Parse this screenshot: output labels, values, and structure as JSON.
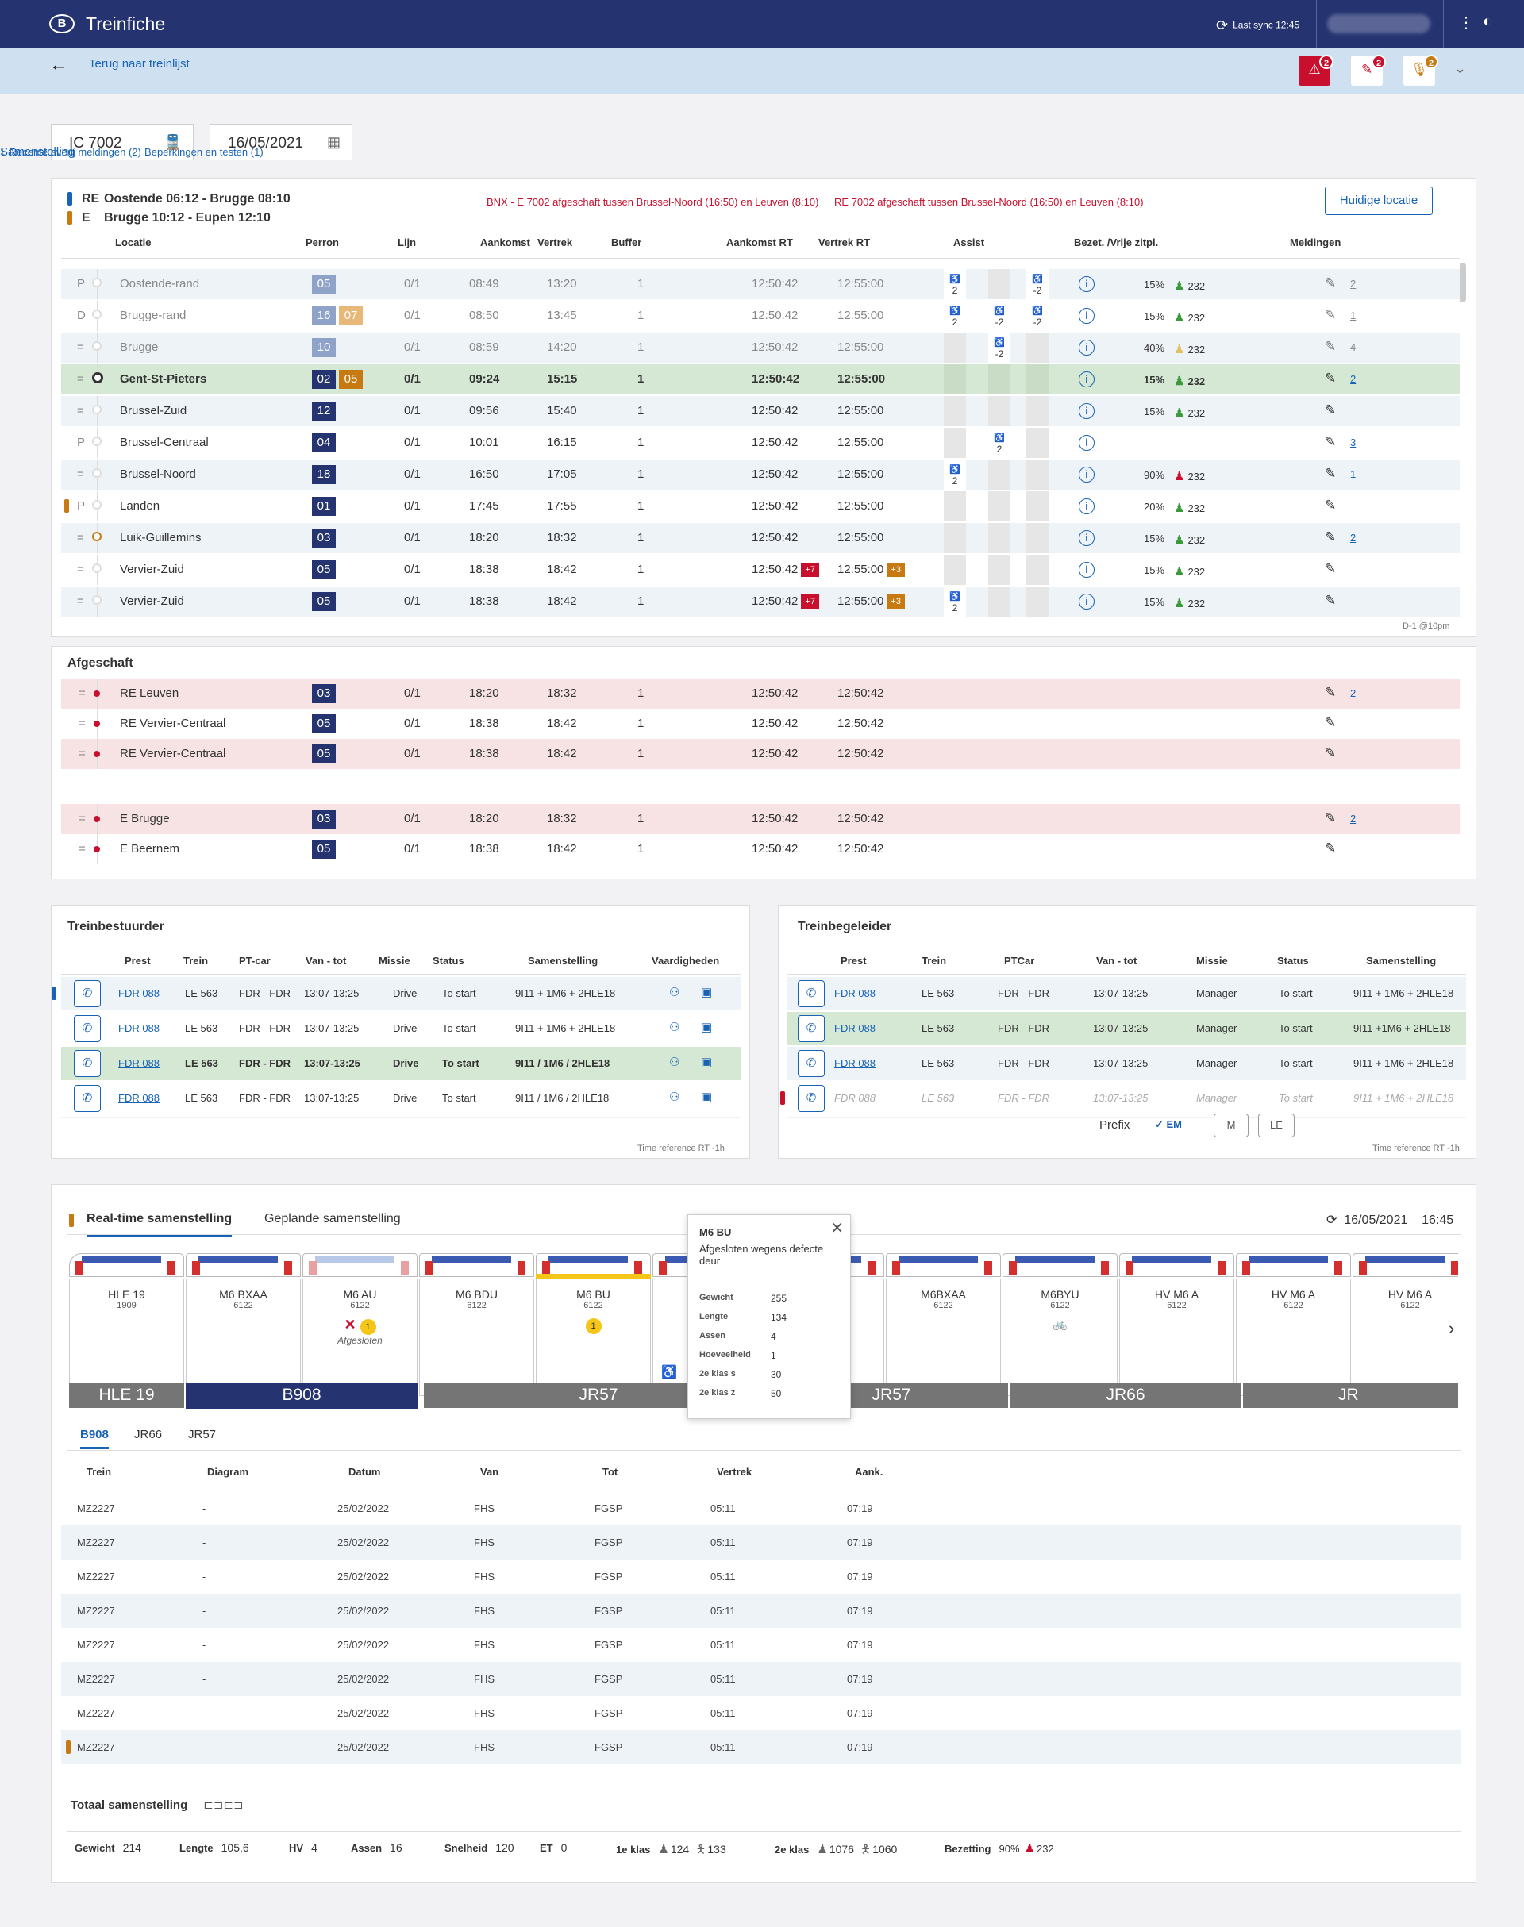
{
  "app": {
    "logo": "B",
    "title": "Treinfiche",
    "sync": "Last sync 12:45"
  },
  "subbar": {
    "back": "Terug naar treinlijst",
    "badges": [
      {
        "count": "2",
        "color": "#c8102e",
        "icon": "train-alert-icon"
      },
      {
        "count": "2",
        "color": "#ffffff",
        "icon": "restriction-icon"
      },
      {
        "count": "2",
        "color": "#ffffff",
        "icon": "microphone-icon"
      }
    ]
  },
  "search": {
    "train": "IC 7002",
    "date": "16/05/2021",
    "tabs": [
      "Samenstelling",
      "Recente averij meldingen (2)",
      "Beperkingen en testen (1)"
    ]
  },
  "route": {
    "lines": [
      {
        "code": "RE",
        "text": "Oostende 06:12 -  Brugge 08:10",
        "color": "#1863b6"
      },
      {
        "code": "E",
        "text": "Brugge 10:12 -  Eupen 12:10",
        "color": "#c77a12"
      }
    ],
    "alerts": [
      "BNX - E 7002 afgeschaft tussen Brussel-Noord (16:50) en Leuven (8:10)",
      "RE 7002 afgeschaft tussen Brussel-Noord (16:50) en Leuven (8:10)"
    ],
    "location_btn": "Huidige locatie",
    "headers": [
      "Locatie",
      "Perron",
      "Lijn",
      "Aankomst",
      "Vertrek",
      "Buffer",
      "Aankomst RT",
      "Vertrek RT",
      "Assist",
      "Bezet. /Vrije zitpl.",
      "Meldingen"
    ],
    "rows": [
      {
        "flag": "P",
        "loc": "Oostende-rand",
        "perron": "05",
        "perron2": "",
        "lijn": "0/1",
        "aank": "08:49",
        "vert": "13:20",
        "buf": "1",
        "aankrt": "12:50:42",
        "vertrt": "12:55:00",
        "tag1": "",
        "tag2": "",
        "assist": [
          "2",
          "",
          "-2"
        ],
        "bezet": "15%",
        "zit": "232",
        "meld": "2",
        "style": "dim"
      },
      {
        "flag": "D",
        "loc": "Brugge-rand",
        "perron": "16",
        "perron2": "07",
        "lijn": "0/1",
        "aank": "08:50",
        "vert": "13:45",
        "buf": "1",
        "aankrt": "12:50:42",
        "vertrt": "12:55:00",
        "tag1": "",
        "tag2": "",
        "assist": [
          "2",
          "-2",
          "-2"
        ],
        "bezet": "15%",
        "zit": "232",
        "meld": "1",
        "style": "dim"
      },
      {
        "flag": "=",
        "loc": "Brugge",
        "perron": "10",
        "perron2": "",
        "lijn": "0/1",
        "aank": "08:59",
        "vert": "14:20",
        "buf": "1",
        "aankrt": "12:50:42",
        "vertrt": "12:55:00",
        "tag1": "",
        "tag2": "",
        "assist": [
          "",
          "-2",
          ""
        ],
        "bezet": "40%",
        "zit": "232",
        "meld": "4",
        "style": "dim"
      },
      {
        "flag": "=",
        "loc": "Gent-St-Pieters",
        "perron": "02",
        "perron2": "05",
        "lijn": "0/1",
        "aank": "09:24",
        "vert": "15:15",
        "buf": "1",
        "aankrt": "12:50:42",
        "vertrt": "12:55:00",
        "tag1": "",
        "tag2": "",
        "assist": [
          "",
          "",
          ""
        ],
        "bezet": "15%",
        "zit": "232",
        "meld": "2",
        "style": "current"
      },
      {
        "flag": "=",
        "loc": "Brussel-Zuid",
        "perron": "12",
        "perron2": "",
        "lijn": "0/1",
        "aank": "09:56",
        "vert": "15:40",
        "buf": "1",
        "aankrt": "12:50:42",
        "vertrt": "12:55:00",
        "tag1": "",
        "tag2": "",
        "assist": [
          "",
          "",
          ""
        ],
        "bezet": "15%",
        "zit": "232",
        "meld": "",
        "style": ""
      },
      {
        "flag": "P",
        "loc": "Brussel-Centraal",
        "perron": "04",
        "perron2": "",
        "lijn": "0/1",
        "aank": "10:01",
        "vert": "16:15",
        "buf": "1",
        "aankrt": "12:50:42",
        "vertrt": "12:55:00",
        "tag1": "",
        "tag2": "",
        "assist": [
          "",
          "2",
          ""
        ],
        "bezet": "",
        "zit": "",
        "meld": "3",
        "style": ""
      },
      {
        "flag": "=",
        "loc": "Brussel-Noord",
        "perron": "18",
        "perron2": "",
        "lijn": "0/1",
        "aank": "16:50",
        "vert": "17:05",
        "buf": "1",
        "aankrt": "12:50:42",
        "vertrt": "12:55:00",
        "tag1": "",
        "tag2": "",
        "assist": [
          "2",
          "",
          ""
        ],
        "bezet": "90%",
        "zit": "232",
        "meld": "1",
        "style": ""
      },
      {
        "flag": "P",
        "loc": "Landen",
        "perron": "01",
        "perron2": "",
        "lijn": "0/1",
        "aank": "17:45",
        "vert": "17:55",
        "buf": "1",
        "aankrt": "12:50:42",
        "vertrt": "12:55:00",
        "tag1": "",
        "tag2": "",
        "assist": [
          "",
          "",
          ""
        ],
        "bezet": "20%",
        "zit": "232",
        "meld": "",
        "style": ""
      },
      {
        "flag": "=",
        "loc": "Luik-Guillemins",
        "perron": "03",
        "perron2": "",
        "lijn": "0/1",
        "aank": "18:20",
        "vert": "18:32",
        "buf": "1",
        "aankrt": "12:50:42",
        "vertrt": "12:55:00",
        "tag1": "",
        "tag2": "",
        "assist": [
          "",
          "",
          ""
        ],
        "bezet": "15%",
        "zit": "232",
        "meld": "2",
        "style": ""
      },
      {
        "flag": "=",
        "loc": "Vervier-Zuid",
        "perron": "05",
        "perron2": "",
        "lijn": "0/1",
        "aank": "18:38",
        "vert": "18:42",
        "buf": "1",
        "aankrt": "12:50:42",
        "vertrt": "12:55:00",
        "tag1": "+7",
        "tag2": "+3",
        "assist": [
          "",
          "",
          ""
        ],
        "bezet": "15%",
        "zit": "232",
        "meld": "",
        "style": ""
      },
      {
        "flag": "=",
        "loc": "Vervier-Zuid",
        "perron": "05",
        "perron2": "",
        "lijn": "0/1",
        "aank": "18:38",
        "vert": "18:42",
        "buf": "1",
        "aankrt": "12:50:42",
        "vertrt": "12:55:00",
        "tag1": "+7",
        "tag2": "+3",
        "assist": [
          "2",
          "",
          ""
        ],
        "bezet": "15%",
        "zit": "232",
        "meld": "",
        "style": ""
      }
    ],
    "footnote": "D-1 @10pm"
  },
  "cancelled": {
    "title": "Afgeschaft",
    "rows": [
      {
        "loc": "RE Leuven",
        "perron": "03",
        "lijn": "0/1",
        "aank": "18:20",
        "vert": "18:32",
        "buf": "1",
        "aankrt": "12:50:42",
        "vertrt": "12:50:42",
        "meld": "2",
        "pink": true
      },
      {
        "loc": "RE Vervier-Centraal",
        "perron": "05",
        "lijn": "0/1",
        "aank": "18:38",
        "vert": "18:42",
        "buf": "1",
        "aankrt": "12:50:42",
        "vertrt": "12:50:42",
        "meld": "",
        "pink": false
      },
      {
        "loc": "RE Vervier-Centraal",
        "perron": "05",
        "lijn": "0/1",
        "aank": "18:38",
        "vert": "18:42",
        "buf": "1",
        "aankrt": "12:50:42",
        "vertrt": "12:50:42",
        "meld": "",
        "pink": true
      },
      {
        "loc": "E Brugge",
        "perron": "03",
        "lijn": "0/1",
        "aank": "18:20",
        "vert": "18:32",
        "buf": "1",
        "aankrt": "12:50:42",
        "vertrt": "12:50:42",
        "meld": "2",
        "pink": true
      },
      {
        "loc": "E Beernem",
        "perron": "05",
        "lijn": "0/1",
        "aank": "18:38",
        "vert": "18:42",
        "buf": "1",
        "aankrt": "12:50:42",
        "vertrt": "12:50:42",
        "meld": "",
        "pink": false
      }
    ]
  },
  "driver": {
    "title": "Treinbestuurder",
    "headers": [
      "Prest",
      "Trein",
      "PT-car",
      "Van - tot",
      "Missie",
      "Status",
      "Samenstelling",
      "Vaardigheden"
    ],
    "rows": [
      {
        "prest": "FDR 088",
        "trein": "LE 563",
        "ptcar": "FDR - FDR",
        "vantot": "13:07-13:25",
        "missie": "Drive",
        "status": "To start",
        "sam": "9I11 + 1M6 + 2HLE18"
      },
      {
        "prest": "FDR 088",
        "trein": "LE 563",
        "ptcar": "FDR - FDR",
        "vantot": "13:07-13:25",
        "missie": "Drive",
        "status": "To start",
        "sam": "9I11 + 1M6 + 2HLE18"
      },
      {
        "prest": "FDR 088",
        "trein": "LE 563",
        "ptcar": "FDR - FDR",
        "vantot": "13:07-13:25",
        "missie": "Drive",
        "status": "To start",
        "sam": "9I11 / 1M6 / 2HLE18"
      },
      {
        "prest": "FDR 088",
        "trein": "LE 563",
        "ptcar": "FDR - FDR",
        "vantot": "13:07-13:25",
        "missie": "Drive",
        "status": "To start",
        "sam": "9I11 / 1M6 / 2HLE18"
      }
    ],
    "footnote": "Time reference RT -1h"
  },
  "conductor": {
    "title": "Treinbegeleider",
    "headers": [
      "Prest",
      "Trein",
      "PTCar",
      "Van - tot",
      "Missie",
      "Status",
      "Samenstelling"
    ],
    "rows": [
      {
        "prest": "FDR 088",
        "trein": "LE 563",
        "ptcar": "FDR - FDR",
        "vantot": "13:07-13:25",
        "missie": "Manager",
        "status": "To start",
        "sam": "9I11 + 1M6 + 2HLE18"
      },
      {
        "prest": "FDR 088",
        "trein": "LE 563",
        "ptcar": "FDR - FDR",
        "vantot": "13:07-13:25",
        "missie": "Manager",
        "status": "To start",
        "sam": "9I11 +1M6 + 2HLE18"
      },
      {
        "prest": "FDR 088",
        "trein": "LE 563",
        "ptcar": "FDR - FDR",
        "vantot": "13:07-13:25",
        "missie": "Manager",
        "status": "To start",
        "sam": "9I11 + 1M6 + 2HLE18"
      },
      {
        "prest": "FDR 088",
        "trein": "LE 563",
        "ptcar": "FDR - FDR",
        "vantot": "13:07-13:25",
        "missie": "Manager",
        "status": "To start",
        "sam": "9I11 + 1M6 + 2HLE18"
      }
    ],
    "prefix": "Prefix",
    "em": "EM",
    "m": "M",
    "le": "LE",
    "footnote": "Time reference RT -1h"
  },
  "composition": {
    "tabs": [
      "Real-time samenstelling",
      "Geplande samenstelling"
    ],
    "date": "16/05/2021",
    "time": "16:45",
    "wagons": [
      {
        "name": "HLE 19",
        "num": "1909",
        "status": "",
        "top": "#d32f2f"
      },
      {
        "name": "M6 BXAA",
        "num": "6122",
        "status": "",
        "top": ""
      },
      {
        "name": "M6 AU",
        "num": "6122",
        "status": "Afgesloten",
        "top": "#e8a0a0"
      },
      {
        "name": "M6 BDU",
        "num": "6122",
        "status": "",
        "top": ""
      },
      {
        "name": "M6 BU",
        "num": "6122",
        "status": "",
        "top": ""
      },
      {
        "name": "",
        "num": "",
        "status": "",
        "top": ""
      },
      {
        "name": "",
        "num": "",
        "status": "",
        "top": ""
      },
      {
        "name": "M6BXAA",
        "num": "6122",
        "status": "",
        "top": ""
      },
      {
        "name": "M6BYU",
        "num": "6122",
        "status": "",
        "top": ""
      },
      {
        "name": "HV M6 A",
        "num": "6122",
        "status": "",
        "top": ""
      },
      {
        "name": "HV M6 A",
        "num": "6122",
        "status": "",
        "top": ""
      },
      {
        "name": "HV M6 A",
        "num": "6122",
        "status": "",
        "top": ""
      }
    ],
    "groups": [
      "HLE 19",
      "B908",
      "JR57",
      "JR57",
      "JR66",
      "JR"
    ],
    "popup": {
      "title": "M6 BU",
      "desc": "Afgesloten wegens defecte deur",
      "fields": [
        [
          "Gewicht",
          "255"
        ],
        [
          "Lengte",
          "134"
        ],
        [
          "Assen",
          "4"
        ],
        [
          "Hoeveelheid",
          "1"
        ],
        [
          "2e klas s",
          "30"
        ],
        [
          "2e klas z",
          "50"
        ]
      ]
    },
    "subtabs": [
      "B908",
      "JR66",
      "JR57"
    ],
    "headers": [
      "Trein",
      "Diagram",
      "Datum",
      "Van",
      "Tot",
      "Vertrek",
      "Aank."
    ],
    "rows": [
      {
        "trein": "MZ2227",
        "diagram": "-",
        "datum": "25/02/2022",
        "van": "FHS",
        "tot": "FGSP",
        "vertrek": "05:11",
        "aank": "07:19"
      },
      {
        "trein": "MZ2227",
        "diagram": "-",
        "datum": "25/02/2022",
        "van": "FHS",
        "tot": "FGSP",
        "vertrek": "05:11",
        "aank": "07:19"
      },
      {
        "trein": "MZ2227",
        "diagram": "-",
        "datum": "25/02/2022",
        "van": "FHS",
        "tot": "FGSP",
        "vertrek": "05:11",
        "aank": "07:19"
      },
      {
        "trein": "MZ2227",
        "diagram": "-",
        "datum": "25/02/2022",
        "van": "FHS",
        "tot": "FGSP",
        "vertrek": "05:11",
        "aank": "07:19"
      },
      {
        "trein": "MZ2227",
        "diagram": "-",
        "datum": "25/02/2022",
        "van": "FHS",
        "tot": "FGSP",
        "vertrek": "05:11",
        "aank": "07:19"
      },
      {
        "trein": "MZ2227",
        "diagram": "-",
        "datum": "25/02/2022",
        "van": "FHS",
        "tot": "FGSP",
        "vertrek": "05:11",
        "aank": "07:19"
      },
      {
        "trein": "MZ2227",
        "diagram": "-",
        "datum": "25/02/2022",
        "van": "FHS",
        "tot": "FGSP",
        "vertrek": "05:11",
        "aank": "07:19"
      },
      {
        "trein": "MZ2227",
        "diagram": "-",
        "datum": "25/02/2022",
        "van": "FHS",
        "tot": "FGSP",
        "vertrek": "05:11",
        "aank": "07:19"
      }
    ],
    "total_title": "Totaal samenstelling",
    "totals": [
      [
        "Gewicht",
        "214"
      ],
      [
        "Lengte",
        "105,6"
      ],
      [
        "HV",
        "4"
      ],
      [
        "Assen",
        "16"
      ],
      [
        "Snelheid",
        "120"
      ],
      [
        "ET",
        "0"
      ],
      [
        "1e klas",
        "124",
        "133"
      ],
      [
        "2e klas",
        "1076",
        "1060"
      ],
      [
        "Bezetting",
        "90%",
        "232"
      ]
    ]
  }
}
